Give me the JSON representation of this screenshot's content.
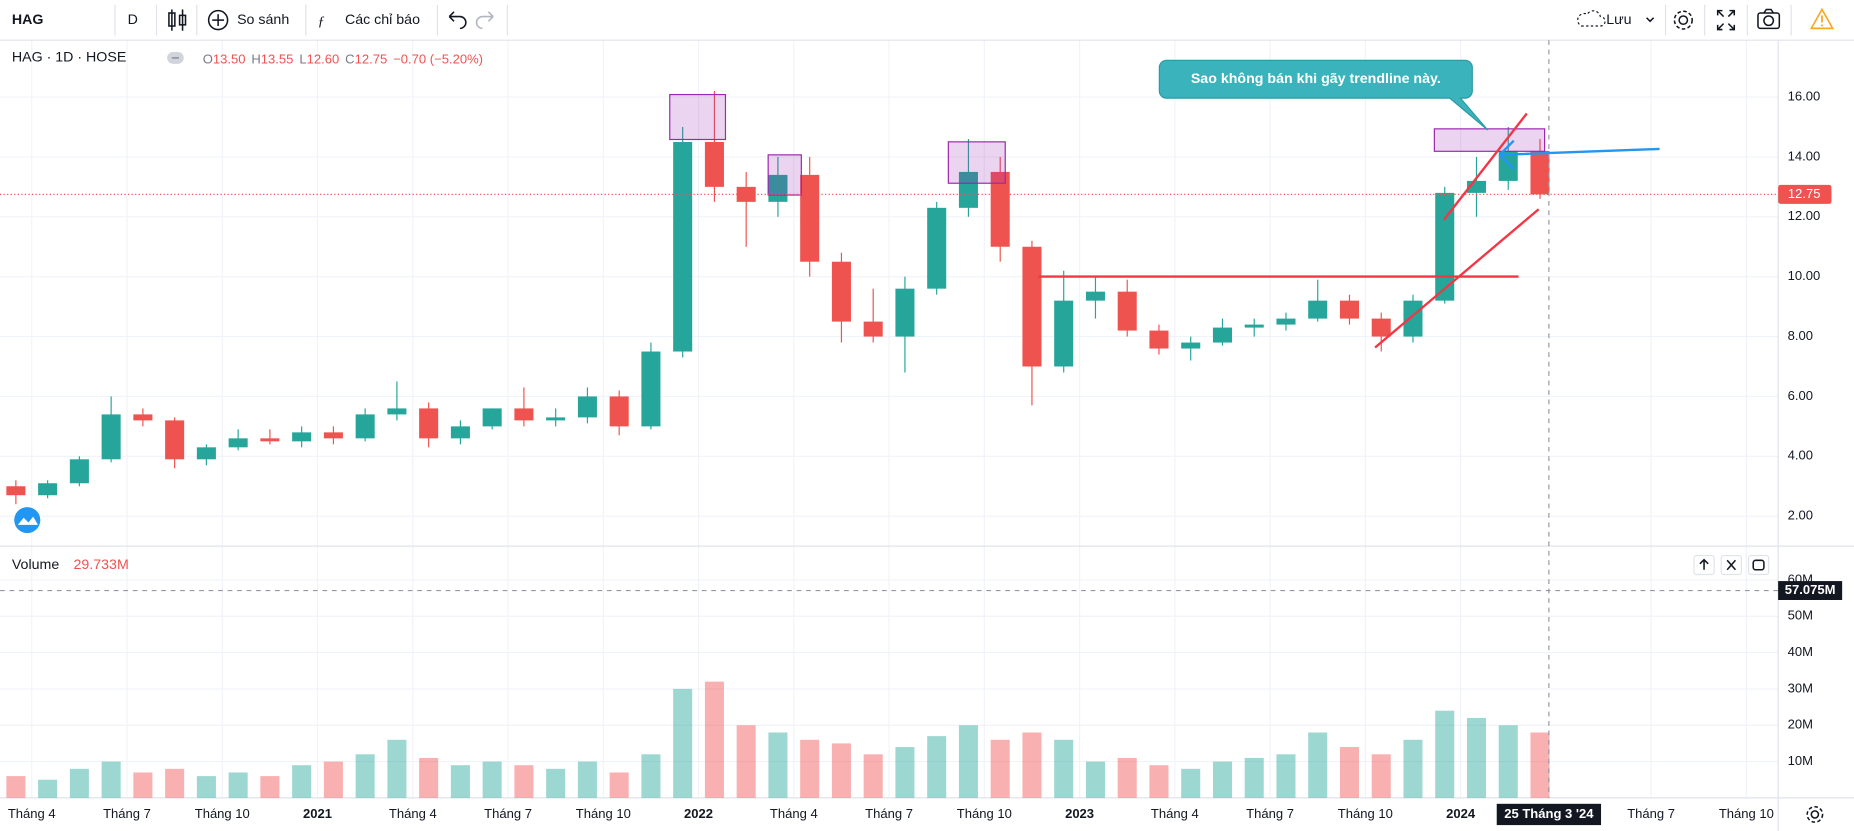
{
  "toolbar": {
    "symbol": "HAG",
    "interval": "D",
    "compare": "So sánh",
    "indicators": "Các chỉ báo",
    "save": "Lưu"
  },
  "legend": {
    "symbol": "HAG · 1D · HOSE",
    "ohlc": [
      {
        "key": "O",
        "value": "13.50"
      },
      {
        "key": "H",
        "value": "13.55"
      },
      {
        "key": "L",
        "value": "12.60"
      },
      {
        "key": "C",
        "value": "12.75"
      }
    ],
    "change": "−0.70 (−5.20%)"
  },
  "volume_legend": {
    "name": "Volume",
    "value": "29.733M"
  },
  "annotation": "Sao không bán khi gãy trendline này.",
  "chart_data": {
    "type": "candlestick",
    "xlim": [
      "2020-03",
      "2024-11"
    ],
    "x": [
      "2020-03",
      "2020-04",
      "2020-05",
      "2020-06",
      "2020-07",
      "2020-08",
      "2020-09",
      "2020-10",
      "2020-11",
      "2020-12",
      "2021-01",
      "2021-02",
      "2021-03",
      "2021-04",
      "2021-05",
      "2021-06",
      "2021-07",
      "2021-08",
      "2021-09",
      "2021-10",
      "2021-11",
      "2021-12",
      "2022-01",
      "2022-02",
      "2022-03",
      "2022-04",
      "2022-05",
      "2022-06",
      "2022-07",
      "2022-08",
      "2022-09",
      "2022-10",
      "2022-11",
      "2022-12",
      "2023-01",
      "2023-02",
      "2023-03",
      "2023-04",
      "2023-05",
      "2023-06",
      "2023-07",
      "2023-08",
      "2023-09",
      "2023-10",
      "2023-11",
      "2023-12",
      "2024-01",
      "2024-02",
      "2024-03"
    ],
    "open": [
      3.0,
      2.7,
      3.1,
      3.9,
      5.4,
      5.2,
      3.9,
      4.3,
      4.6,
      4.5,
      4.8,
      4.6,
      5.4,
      5.6,
      4.6,
      5.0,
      5.6,
      5.2,
      5.3,
      6.0,
      5.0,
      7.5,
      14.5,
      13.0,
      12.5,
      13.4,
      10.5,
      8.5,
      8.0,
      9.6,
      12.3,
      13.5,
      11.0,
      7.0,
      9.2,
      9.5,
      8.2,
      7.6,
      7.8,
      8.3,
      8.4,
      8.6,
      9.2,
      8.6,
      8.0,
      9.2,
      12.8,
      13.2,
      14.2
    ],
    "high": [
      3.2,
      3.2,
      4.0,
      6.0,
      5.6,
      5.3,
      4.4,
      4.9,
      4.9,
      5.0,
      5.0,
      5.6,
      6.5,
      5.8,
      5.2,
      5.6,
      6.3,
      5.6,
      6.3,
      6.2,
      7.8,
      15.0,
      16.2,
      13.5,
      14.0,
      14.0,
      10.8,
      9.6,
      10.0,
      12.5,
      14.6,
      14.0,
      11.2,
      10.2,
      10.0,
      9.9,
      8.4,
      8.0,
      8.6,
      8.6,
      8.8,
      9.9,
      9.4,
      8.8,
      9.4,
      13.0,
      14.0,
      15.0,
      14.6
    ],
    "low": [
      2.4,
      2.6,
      3.0,
      3.8,
      5.0,
      3.6,
      3.7,
      4.2,
      4.4,
      4.3,
      4.4,
      4.5,
      5.2,
      4.3,
      4.4,
      4.9,
      5.0,
      5.0,
      5.1,
      4.7,
      4.9,
      7.3,
      12.5,
      11.0,
      12.0,
      10.0,
      7.8,
      7.8,
      6.8,
      9.4,
      12.0,
      10.5,
      5.7,
      6.8,
      8.6,
      8.0,
      7.4,
      7.2,
      7.7,
      8.0,
      8.2,
      8.5,
      8.4,
      7.5,
      7.8,
      9.1,
      12.0,
      12.9,
      12.6
    ],
    "close": [
      2.7,
      3.1,
      3.9,
      5.4,
      5.2,
      3.9,
      4.3,
      4.6,
      4.5,
      4.8,
      4.6,
      5.4,
      5.6,
      4.6,
      5.0,
      5.6,
      5.2,
      5.3,
      6.0,
      5.0,
      7.5,
      14.5,
      13.0,
      12.5,
      13.4,
      10.5,
      8.5,
      8.0,
      9.6,
      12.3,
      13.5,
      11.0,
      7.0,
      9.2,
      9.5,
      8.2,
      7.6,
      7.8,
      8.3,
      8.4,
      8.6,
      9.2,
      8.6,
      8.0,
      9.2,
      12.8,
      13.2,
      14.2,
      12.75
    ],
    "volume": [
      6,
      5,
      8,
      10,
      7,
      8,
      6,
      7,
      6,
      9,
      10,
      12,
      16,
      11,
      9,
      10,
      9,
      8,
      10,
      7,
      12,
      30,
      32,
      20,
      18,
      16,
      15,
      12,
      14,
      17,
      20,
      16,
      18,
      16,
      10,
      11,
      9,
      8,
      10,
      11,
      12,
      18,
      14,
      12,
      16,
      24,
      22,
      20,
      18
    ],
    "up_color": "#26a69a",
    "down_color": "#ef5350",
    "ylim": [
      1,
      17.9
    ],
    "yticks": [
      {
        "value": 2,
        "label": "2.00"
      },
      {
        "value": 4,
        "label": "4.00"
      },
      {
        "value": 6,
        "label": "6.00"
      },
      {
        "value": 8,
        "label": "8.00"
      },
      {
        "value": 10,
        "label": "10.00"
      },
      {
        "value": 12,
        "label": "12.00"
      },
      {
        "value": 14,
        "label": "14.00"
      },
      {
        "value": 16,
        "label": "16.00"
      }
    ],
    "y2lim": [
      0,
      69.3
    ],
    "y2ticks": [
      {
        "value": 10,
        "label": "10M"
      },
      {
        "value": 20,
        "label": "20M"
      },
      {
        "value": 30,
        "label": "30M"
      },
      {
        "value": 40,
        "label": "40M"
      },
      {
        "value": 50,
        "label": "50M"
      },
      {
        "value": 60,
        "label": "60M"
      }
    ],
    "last_price": {
      "value": 12.75,
      "label": "12.75"
    },
    "crosshair_volume": {
      "value": 57.075,
      "label": "57.075M"
    },
    "crosshair_date": {
      "month": "2024-03",
      "label": "25 Tháng 3 '24"
    },
    "xticks": [
      {
        "month": "2020-04",
        "label": "Tháng 4"
      },
      {
        "month": "2020-07",
        "label": "Tháng 7"
      },
      {
        "month": "2020-10",
        "label": "Tháng 10"
      },
      {
        "month": "2021-01",
        "label": "2021"
      },
      {
        "month": "2021-04",
        "label": "Tháng 4"
      },
      {
        "month": "2021-07",
        "label": "Tháng 7"
      },
      {
        "month": "2021-10",
        "label": "Tháng 10"
      },
      {
        "month": "2022-01",
        "label": "2022"
      },
      {
        "month": "2022-04",
        "label": "Tháng 4"
      },
      {
        "month": "2022-07",
        "label": "Tháng 7"
      },
      {
        "month": "2022-10",
        "label": "Tháng 10"
      },
      {
        "month": "2023-01",
        "label": "2023"
      },
      {
        "month": "2023-04",
        "label": "Tháng 4"
      },
      {
        "month": "2023-07",
        "label": "Tháng 7"
      },
      {
        "month": "2023-10",
        "label": "Tháng 10"
      },
      {
        "month": "2024-01",
        "label": "2024"
      },
      {
        "month": "2024-07",
        "label": "Tháng 7"
      },
      {
        "month": "2024-10",
        "label": "Tháng 10"
      }
    ],
    "grid": true
  }
}
